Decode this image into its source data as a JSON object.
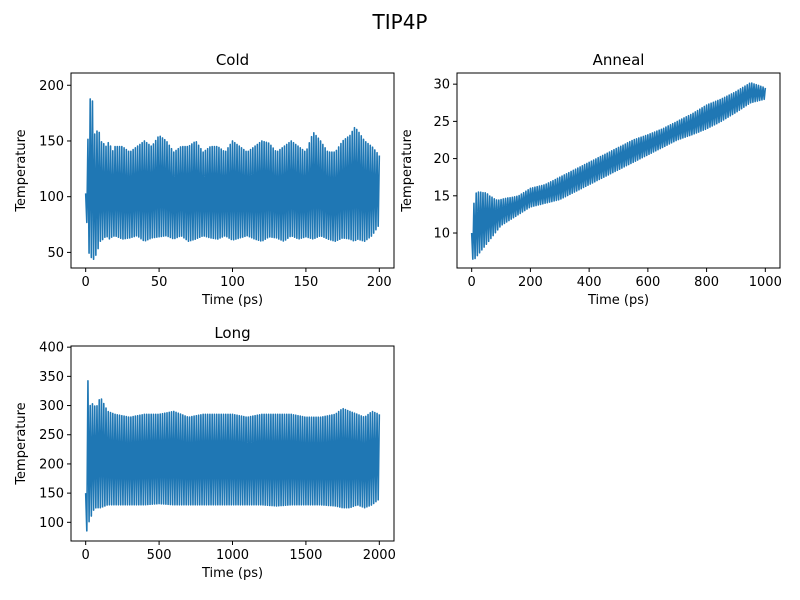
{
  "figure": {
    "suptitle": "TIP4P"
  },
  "chart_data": [
    {
      "type": "line",
      "title": "Cold",
      "xlabel": "Time (ps)",
      "ylabel": "Temperature",
      "xlim": [
        -10,
        210
      ],
      "ylim": [
        36,
        211
      ],
      "xticks": [
        0,
        50,
        100,
        150,
        200
      ],
      "yticks": [
        50,
        100,
        150,
        200
      ],
      "grid": false,
      "color": "#1f77b4",
      "series": [
        {
          "x": [
            0,
            1,
            2,
            3,
            4,
            5,
            6,
            7,
            8,
            9,
            10,
            12,
            14,
            16,
            18,
            20,
            25,
            30,
            35,
            40,
            45,
            50,
            55,
            60,
            65,
            70,
            75,
            80,
            85,
            90,
            95,
            100,
            105,
            110,
            115,
            120,
            125,
            130,
            135,
            140,
            145,
            150,
            155,
            160,
            165,
            170,
            175,
            180,
            183,
            185,
            190,
            195,
            200
          ],
          "upper": [
            103,
            165,
            140,
            190,
            160,
            202,
            150,
            190,
            145,
            160,
            150,
            148,
            145,
            150,
            140,
            145,
            145,
            140,
            145,
            150,
            145,
            155,
            150,
            140,
            145,
            145,
            150,
            140,
            145,
            145,
            140,
            150,
            145,
            140,
            145,
            150,
            148,
            140,
            145,
            150,
            145,
            140,
            158,
            150,
            140,
            140,
            150,
            155,
            162,
            160,
            150,
            145,
            137
          ],
          "lower": [
            100,
            70,
            50,
            48,
            45,
            45,
            42,
            48,
            52,
            55,
            60,
            62,
            65,
            62,
            64,
            65,
            62,
            63,
            65,
            60,
            63,
            64,
            65,
            62,
            65,
            60,
            62,
            65,
            63,
            62,
            65,
            61,
            63,
            65,
            62,
            60,
            64,
            63,
            60,
            65,
            62,
            64,
            62,
            65,
            62,
            60,
            63,
            62,
            60,
            62,
            60,
            65,
            75
          ]
        }
      ]
    },
    {
      "type": "line",
      "title": "Anneal",
      "xlabel": "Time (ps)",
      "ylabel": "Temperature",
      "xlim": [
        -50,
        1050
      ],
      "ylim": [
        5.3,
        31.5
      ],
      "xticks": [
        0,
        200,
        400,
        600,
        800,
        1000
      ],
      "yticks": [
        10,
        15,
        20,
        25,
        30
      ],
      "grid": false,
      "color": "#1f77b4",
      "series": [
        {
          "x": [
            0,
            10,
            20,
            30,
            40,
            50,
            60,
            70,
            80,
            90,
            100,
            120,
            140,
            160,
            180,
            200,
            250,
            300,
            350,
            400,
            450,
            500,
            550,
            600,
            650,
            700,
            750,
            800,
            850,
            900,
            950,
            1000
          ],
          "upper": [
            10,
            15.2,
            15.5,
            15.5,
            15.4,
            15.4,
            15,
            14.8,
            14.5,
            14.4,
            14.5,
            14.7,
            14.8,
            15,
            15.5,
            16,
            16.5,
            17.5,
            18.5,
            19.5,
            20.5,
            21.5,
            22.5,
            23.2,
            24,
            25,
            26,
            27.2,
            28,
            29,
            30.2,
            29.5
          ],
          "lower": [
            6.5,
            6.5,
            7,
            7.5,
            8,
            8.5,
            9,
            9.5,
            10,
            10.5,
            11,
            11.5,
            12,
            12.5,
            13,
            13.5,
            14,
            14.5,
            15.5,
            16.5,
            17.5,
            18.5,
            19.5,
            20.5,
            21.5,
            22.5,
            23.2,
            24,
            25,
            26.2,
            27.5,
            28
          ]
        }
      ]
    },
    {
      "type": "line",
      "title": "Long",
      "xlabel": "Time (ps)",
      "ylabel": "Temperature",
      "xlim": [
        -100,
        2100
      ],
      "ylim": [
        68,
        402
      ],
      "xticks": [
        0,
        500,
        1000,
        1500,
        2000
      ],
      "yticks": [
        100,
        150,
        200,
        250,
        300,
        350,
        400
      ],
      "grid": false,
      "color": "#1f77b4",
      "series": [
        {
          "x": [
            0,
            5,
            10,
            20,
            30,
            40,
            50,
            70,
            100,
            150,
            200,
            300,
            400,
            500,
            600,
            700,
            800,
            900,
            1000,
            1100,
            1200,
            1300,
            1400,
            1500,
            1600,
            1700,
            1750,
            1800,
            1850,
            1900,
            1950,
            2000
          ],
          "upper": [
            150,
            385,
            345,
            340,
            300,
            300,
            305,
            295,
            315,
            290,
            285,
            280,
            285,
            285,
            290,
            280,
            285,
            285,
            285,
            280,
            285,
            285,
            285,
            280,
            280,
            285,
            295,
            290,
            285,
            280,
            290,
            285
          ],
          "lower": [
            140,
            80,
            90,
            95,
            115,
            110,
            120,
            125,
            125,
            130,
            130,
            130,
            130,
            132,
            130,
            130,
            130,
            130,
            130,
            130,
            130,
            128,
            130,
            130,
            130,
            128,
            125,
            125,
            130,
            125,
            130,
            140
          ]
        }
      ]
    }
  ]
}
